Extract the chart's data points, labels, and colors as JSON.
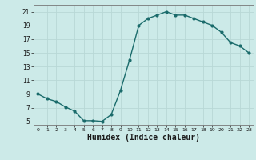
{
  "x": [
    0,
    1,
    2,
    3,
    4,
    5,
    6,
    7,
    8,
    9,
    10,
    11,
    12,
    13,
    14,
    15,
    16,
    17,
    18,
    19,
    20,
    21,
    22,
    23
  ],
  "y": [
    9,
    8.3,
    7.9,
    7.1,
    6.5,
    5.1,
    5.1,
    5.0,
    6.0,
    9.5,
    14.0,
    19.0,
    20.0,
    20.5,
    21.0,
    20.5,
    20.5,
    20.0,
    19.5,
    19.0,
    18.0,
    16.5,
    16.0,
    15.0
  ],
  "line_color": "#1a6b6b",
  "marker": "o",
  "marker_size": 2.0,
  "line_width": 1.0,
  "xlabel": "Humidex (Indice chaleur)",
  "xlabel_fontsize": 7,
  "bg_color": "#cceae8",
  "grid_color": "#b8d8d6",
  "plot_bg": "#cceae8",
  "tick_color": "#1a1a1a",
  "yticks": [
    5,
    7,
    9,
    11,
    13,
    15,
    17,
    19,
    21
  ],
  "xticks": [
    0,
    1,
    2,
    3,
    4,
    5,
    6,
    7,
    8,
    9,
    10,
    11,
    12,
    13,
    14,
    15,
    16,
    17,
    18,
    19,
    20,
    21,
    22,
    23
  ],
  "xlim": [
    -0.5,
    23.5
  ],
  "ylim": [
    4.5,
    22.0
  ]
}
